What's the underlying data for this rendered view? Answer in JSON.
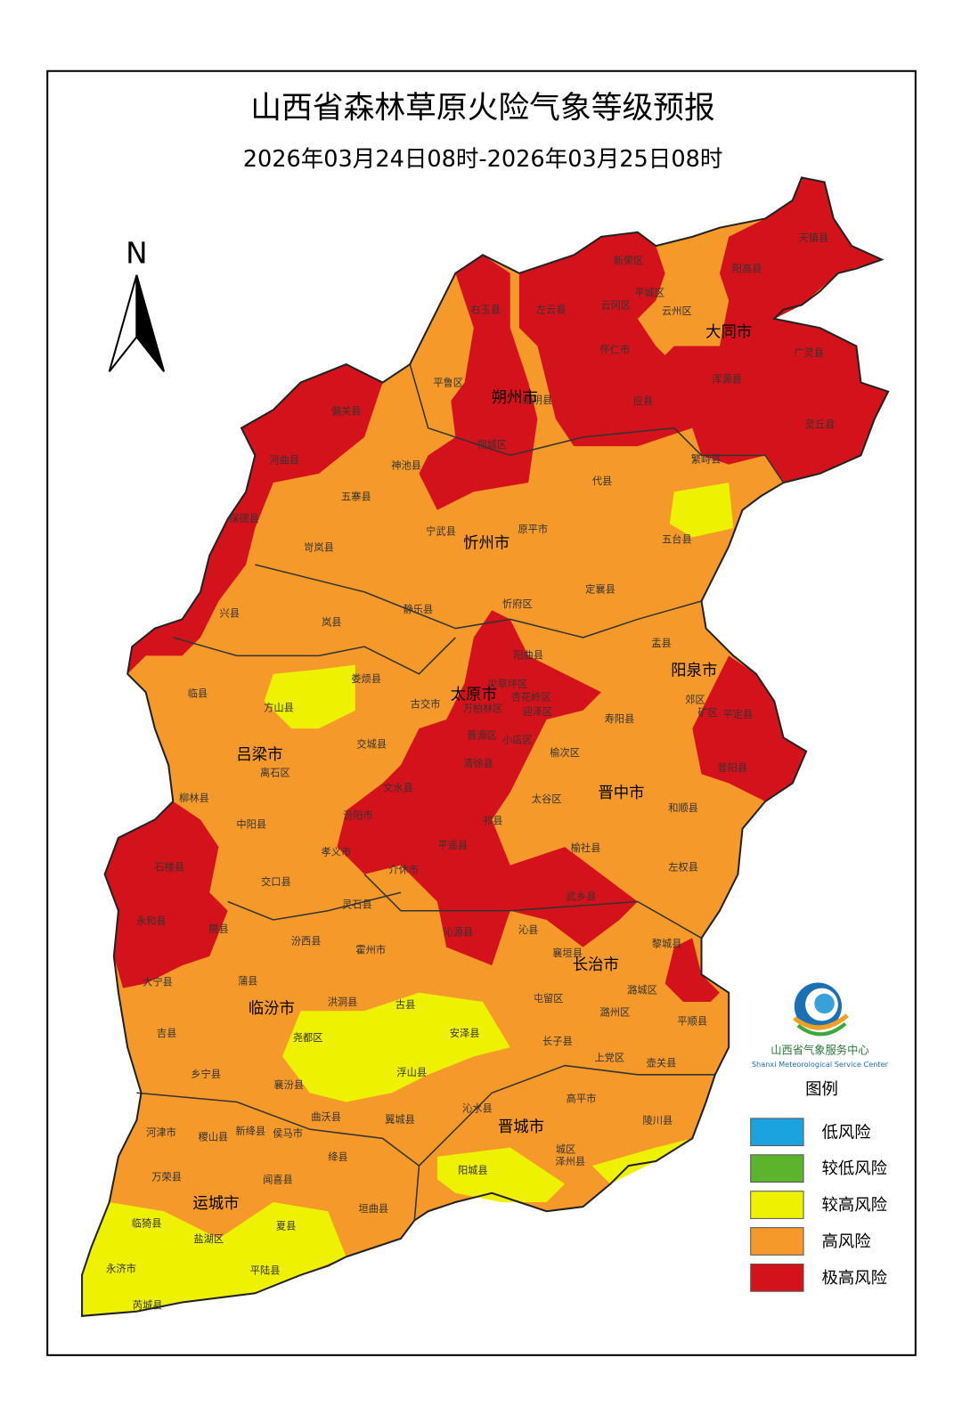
{
  "title": "山西省森林草原火险气象等级预报",
  "subtitle": "2026年03月24日08时-2026年03月25日08时",
  "north": "N",
  "cities": [
    "大同市",
    "朔州市",
    "忻州市",
    "阳泉市",
    "太原市",
    "吕梁市",
    "晋中市",
    "长治市",
    "临汾市",
    "晋城市",
    "运城市"
  ],
  "counties": [
    "天镇县",
    "阳高县",
    "新荣区",
    "左云县",
    "云冈区",
    "平城区",
    "云州区",
    "右玉县",
    "广灵县",
    "浑源县",
    "灵丘县",
    "怀仁市",
    "山阴县",
    "应县",
    "平鲁区",
    "朔城区",
    "偏关县",
    "河曲县",
    "神池县",
    "繁峙县",
    "代县",
    "保德县",
    "五寨县",
    "宁武县",
    "原平市",
    "五台县",
    "岢岚县",
    "兴县",
    "岚县",
    "静乐县",
    "忻府区",
    "定襄县",
    "盂县",
    "阳曲县",
    "临县",
    "方山县",
    "娄烦县",
    "尖草坪区",
    "古交市",
    "万柏林区",
    "杏花岭区",
    "迎泽区",
    "郊区",
    "矿区",
    "平定县",
    "寿阳县",
    "晋源区",
    "小店区",
    "离石区",
    "交城县",
    "清徐县",
    "榆次区",
    "昔阳县",
    "文水县",
    "柳林县",
    "太谷区",
    "和顺县",
    "中阳县",
    "汾阳市",
    "祁县",
    "孝义市",
    "平遥县",
    "榆社县",
    "左权县",
    "石楼县",
    "介休市",
    "交口县",
    "灵石县",
    "武乡县",
    "永和县",
    "隰县",
    "沁源县",
    "沁县",
    "汾西县",
    "霍州市",
    "黎城县",
    "襄垣县",
    "大宁县",
    "蒲县",
    "潞城区",
    "洪洞县",
    "古县",
    "屯留区",
    "潞州区",
    "安泽县",
    "吉县",
    "尧都区",
    "平顺县",
    "长子县",
    "上党区",
    "壶关县",
    "乡宁县",
    "浮山县",
    "襄汾县",
    "曲沃县",
    "翼城县",
    "高平市",
    "沁水县",
    "陵川县",
    "河津市",
    "稷山县",
    "新绛县",
    "侯马市",
    "绛县",
    "阳城县",
    "城区",
    "泽州县",
    "万荣县",
    "闻喜县",
    "临猗县",
    "垣曲县",
    "夏县",
    "盐湖区",
    "永济市",
    "平陆县",
    "芮城县"
  ],
  "legend": {
    "title": "图例",
    "items": [
      {
        "label": "低风险",
        "color": "#1ba3e0"
      },
      {
        "label": "较低风险",
        "color": "#5bb42c"
      },
      {
        "label": "较高风险",
        "color": "#eef200"
      },
      {
        "label": "高风险",
        "color": "#f59a2a"
      },
      {
        "label": "极高风险",
        "color": "#d4121b"
      }
    ]
  },
  "logo": {
    "name": "山西省气象服务中心",
    "name_en": "Shanxi Meteorological Service Center"
  }
}
